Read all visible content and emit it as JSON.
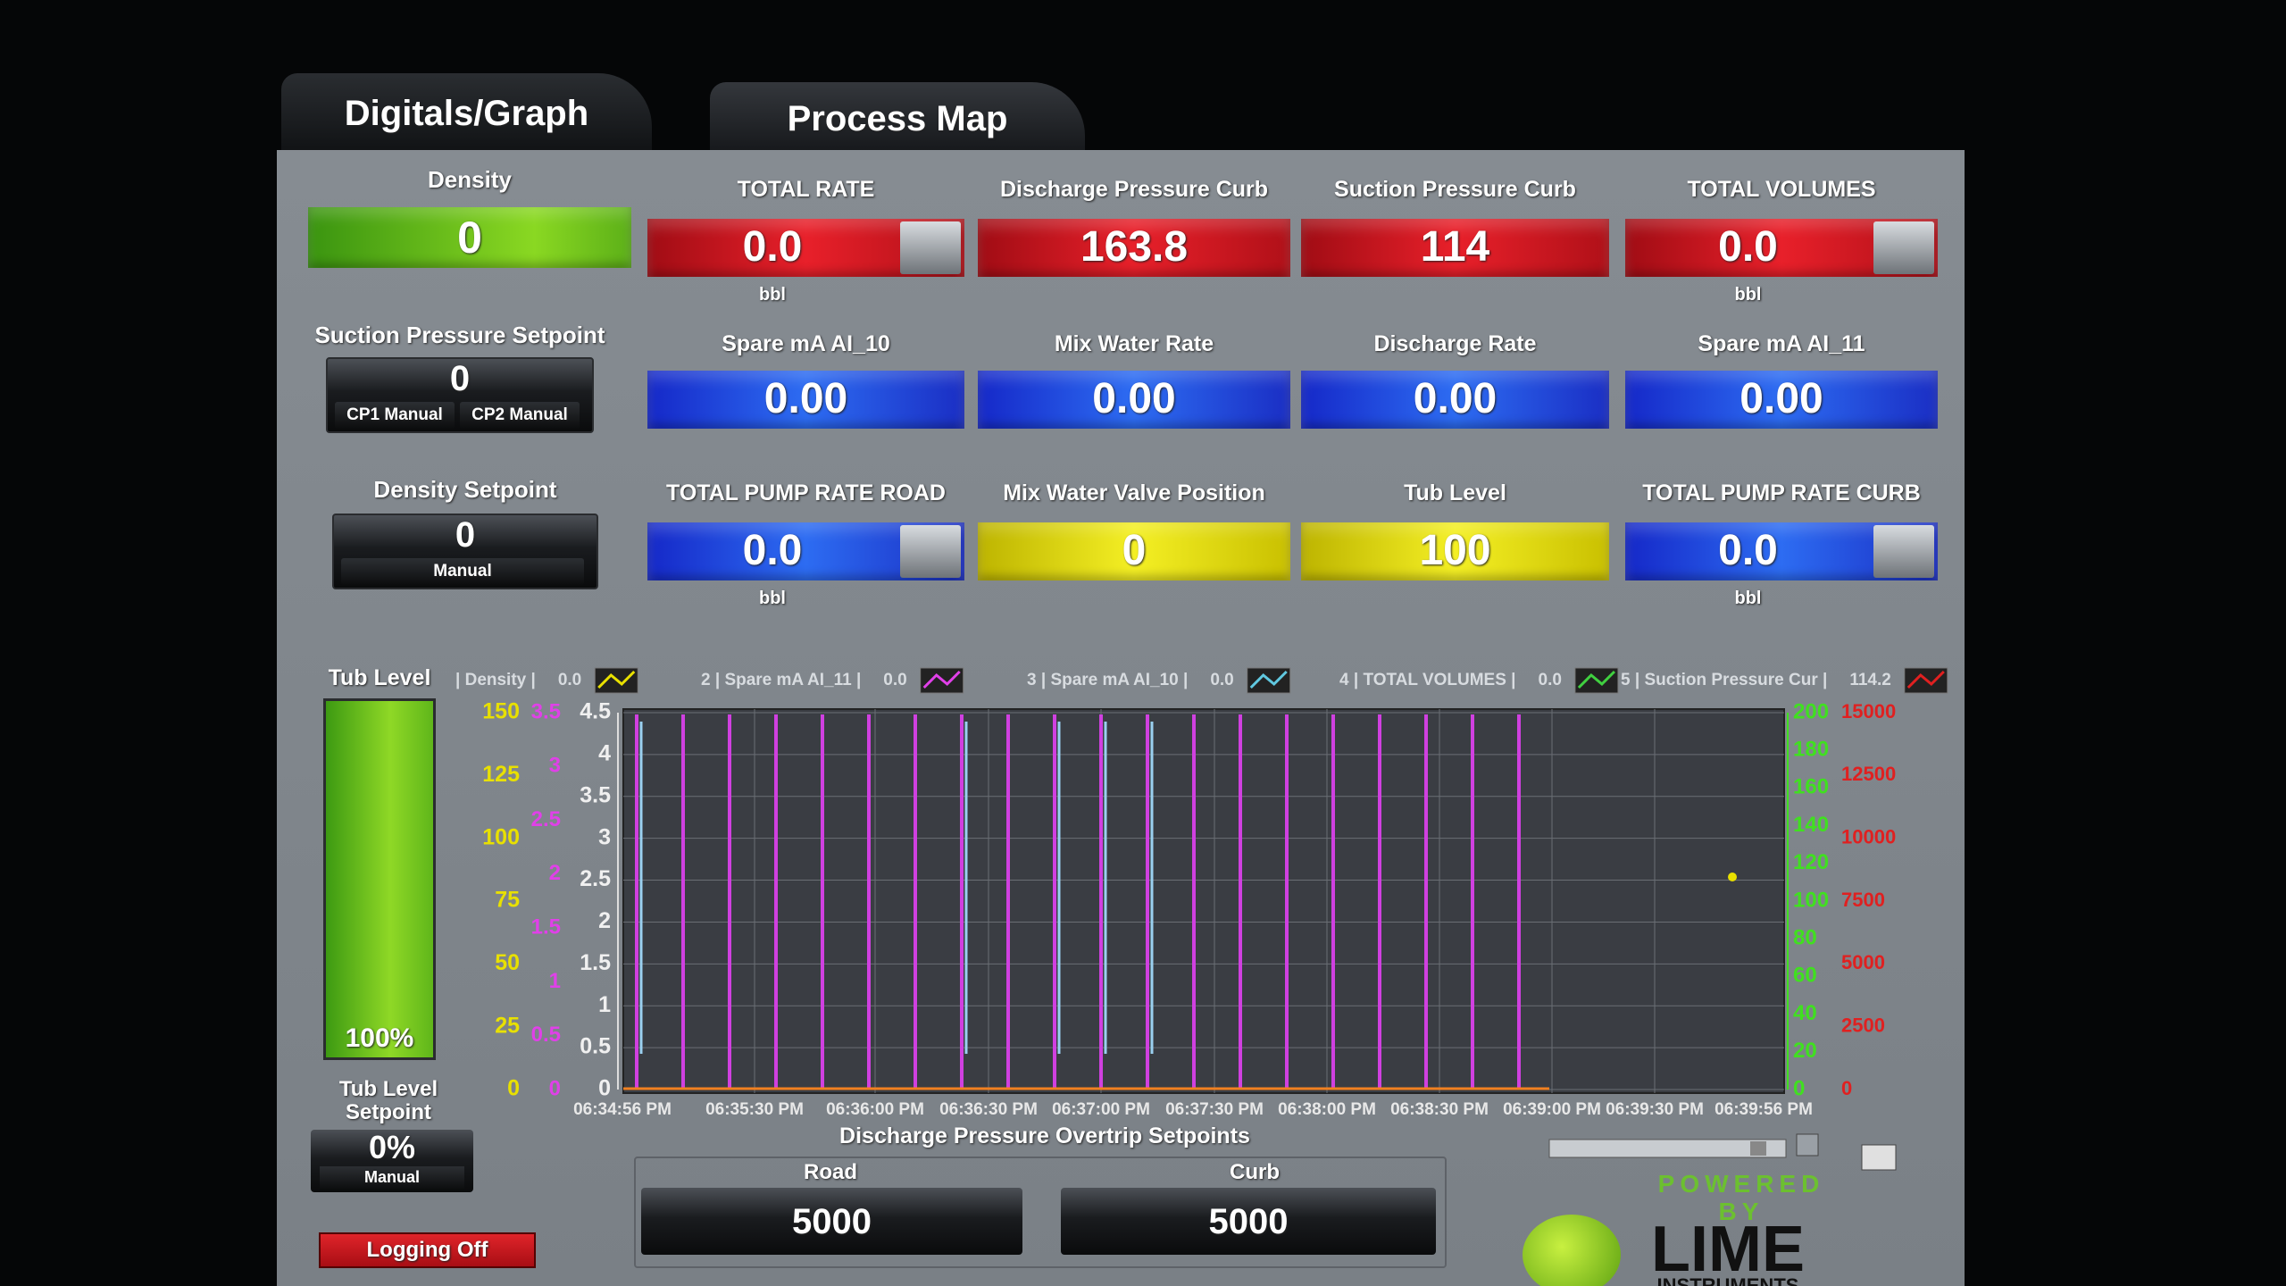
{
  "tabs": [
    "Digitals/Graph",
    "Process Map"
  ],
  "density": {
    "label": "Density",
    "value": "0"
  },
  "suction_setpoint": {
    "label": "Suction Pressure Setpoint",
    "value": "0",
    "buttons": [
      "CP1 Manual",
      "CP2 Manual"
    ]
  },
  "density_setpoint": {
    "label": "Density Setpoint",
    "value": "0",
    "buttons": [
      "Manual"
    ]
  },
  "gauges": [
    [
      {
        "label": "TOTAL RATE",
        "value": "0.0",
        "unit": "bbl"
      },
      {
        "label": "Discharge Pressure Curb",
        "value": "163.8"
      },
      {
        "label": "Suction Pressure Curb",
        "value": "114"
      },
      {
        "label": "TOTAL VOLUMES",
        "value": "0.0",
        "unit": "bbl"
      }
    ],
    [
      {
        "label": "Spare mA AI_10",
        "value": "0.00"
      },
      {
        "label": "Mix Water Rate",
        "value": "0.00"
      },
      {
        "label": "Discharge Rate",
        "value": "0.00"
      },
      {
        "label": "Spare mA AI_11",
        "value": "0.00"
      }
    ],
    [
      {
        "label": "TOTAL PUMP RATE ROAD",
        "value": "0.0",
        "unit": "bbl"
      },
      {
        "label": "Mix Water Valve Position",
        "value": "0"
      },
      {
        "label": "Tub Level",
        "value": "100"
      },
      {
        "label": "TOTAL PUMP RATE CURB",
        "value": "0.0",
        "unit": "bbl"
      }
    ]
  ],
  "tub_level": {
    "label": "Tub Level",
    "value": "100%"
  },
  "tub_level_setpoint": {
    "label": "Tub Level Setpoint",
    "value": "0%",
    "buttons": [
      "Manual"
    ]
  },
  "logging": "Logging Off",
  "graph": {
    "legend": [
      {
        "name": "| Density |",
        "value": "0.0"
      },
      {
        "name": "2 | Spare mA AI_11 |",
        "value": "0.0"
      },
      {
        "name": "3 | Spare mA AI_10 |",
        "value": "0.0"
      },
      {
        "name": "4 | TOTAL VOLUMES |",
        "value": "0.0"
      },
      {
        "name": "5 | Suction Pressure Cur |",
        "value": "114.2"
      }
    ],
    "axes": {
      "left_yellow": [
        "150",
        "125",
        "100",
        "75",
        "50",
        "25",
        "0"
      ],
      "left_magenta": [
        "3.5",
        "3",
        "2.5",
        "2",
        "1.5",
        "1",
        "0.5",
        "0"
      ],
      "left_white": [
        "4.5",
        "4",
        "3.5",
        "3",
        "2.5",
        "2",
        "1.5",
        "1",
        "0.5",
        "0"
      ],
      "right_green": [
        "200",
        "180",
        "160",
        "140",
        "120",
        "100",
        "80",
        "60",
        "40",
        "20",
        "0"
      ],
      "right_red": [
        "15000",
        "12500",
        "10000",
        "7500",
        "5000",
        "2500",
        "0"
      ]
    },
    "x_labels": [
      "06:34:56 PM",
      "06:35:30 PM",
      "06:36:00 PM",
      "06:36:30 PM",
      "06:37:00 PM",
      "06:37:30 PM",
      "06:38:00 PM",
      "06:38:30 PM",
      "06:39:00 PM",
      "06:39:30 PM",
      "06:39:56 PM"
    ]
  },
  "overtrip": {
    "title": "Discharge Pressure Overtrip Setpoints",
    "road": {
      "label": "Road",
      "value": "5000"
    },
    "curb": {
      "label": "Curb",
      "value": "5000"
    }
  },
  "logo": {
    "tagline": "POWERED BY",
    "name": "LIME",
    "sub": "INSTRUMENTS"
  }
}
